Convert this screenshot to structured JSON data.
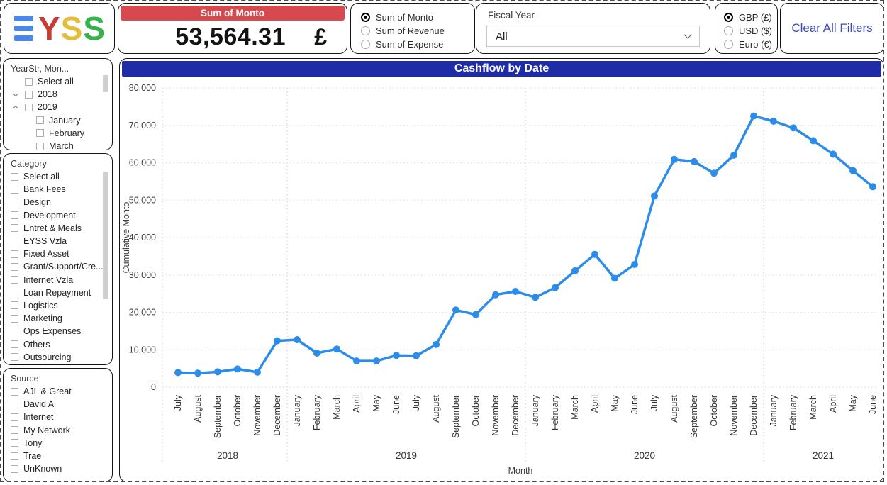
{
  "logo": {
    "text": "EYSS",
    "colors": {
      "e": "#4b87e8",
      "y": "#c93b33",
      "s1": "#e3be3a",
      "s2": "#35b34a"
    }
  },
  "kpi_card": {
    "header": "Sum of Monto",
    "value": "53,564.31",
    "currency": "£",
    "header_bg": "#d6494c",
    "header_color": "#ffffff"
  },
  "metric_selector": {
    "options": [
      {
        "label": "Sum of Monto",
        "selected": true
      },
      {
        "label": "Sum of Revenue",
        "selected": false
      },
      {
        "label": "Sum of Expense",
        "selected": false
      }
    ]
  },
  "fiscal_year": {
    "label": "Fiscal Year",
    "value": "All"
  },
  "currency_selector": {
    "options": [
      {
        "label": "GBP (£)",
        "selected": true
      },
      {
        "label": "USD ($)",
        "selected": false
      },
      {
        "label": "Euro (€)",
        "selected": false
      }
    ]
  },
  "clear_filters_button": {
    "label": "Clear All Filters",
    "color": "#3b4ab8"
  },
  "filters": {
    "year_month": {
      "title": "YearStr, Mon...",
      "items": [
        {
          "label": "Select all",
          "level": 0,
          "expander": null
        },
        {
          "label": "2018",
          "level": 0,
          "expander": "collapsed"
        },
        {
          "label": "2019",
          "level": 0,
          "expander": "expanded"
        },
        {
          "label": "January",
          "level": 1,
          "expander": null
        },
        {
          "label": "February",
          "level": 1,
          "expander": null
        },
        {
          "label": "March",
          "level": 1,
          "expander": null
        }
      ]
    },
    "category": {
      "title": "Category",
      "items": [
        "Select all",
        "Bank Fees",
        "Design",
        "Development",
        "Entret & Meals",
        "EYSS Vzla",
        "Fixed Asset",
        "Grant/Support/Cre...",
        "Internet Vzla",
        "Loan Repayment",
        "Logistics",
        "Marketing",
        "Ops Expenses",
        "Others",
        "Outsourcing"
      ]
    },
    "source": {
      "title": "Source",
      "items": [
        "AJL & Great",
        "David A",
        "Internet",
        "My Network",
        "Tony",
        "Trae",
        "UnKnown"
      ]
    }
  },
  "chart_data": {
    "type": "line",
    "title": "Cashflow by Date",
    "title_bg": "#1f2ca6",
    "title_color": "#ffffff",
    "xlabel": "Month",
    "ylabel": "Cumulative Monto",
    "ylim": [
      0,
      80000
    ],
    "y_ticks": [
      0,
      10000,
      20000,
      30000,
      40000,
      50000,
      60000,
      70000,
      80000
    ],
    "grid": "dotted",
    "legend": "none",
    "line_color": "#2b8cea",
    "x": [
      "July",
      "August",
      "September",
      "October",
      "November",
      "December",
      "January",
      "February",
      "March",
      "April",
      "May",
      "June",
      "July",
      "August",
      "September",
      "October",
      "November",
      "December",
      "January",
      "February",
      "March",
      "April",
      "May",
      "June",
      "July",
      "August",
      "September",
      "October",
      "November",
      "December",
      "January",
      "February",
      "March",
      "April",
      "May",
      "June"
    ],
    "year_groups": [
      {
        "label": "2018",
        "count": 6
      },
      {
        "label": "2019",
        "count": 12
      },
      {
        "label": "2020",
        "count": 12
      },
      {
        "label": "2021",
        "count": 6
      }
    ],
    "series": [
      {
        "name": "Cumulative Monto",
        "values": [
          3900,
          3750,
          4100,
          4850,
          4000,
          12400,
          12700,
          9100,
          10200,
          7000,
          7000,
          8500,
          8400,
          11400,
          20600,
          19400,
          24700,
          25600,
          24000,
          26600,
          31100,
          35500,
          29100,
          32800,
          51100,
          60900,
          60300,
          57200,
          62000,
          72500,
          71100,
          69300,
          65900,
          62300,
          57900,
          53564.31
        ]
      }
    ]
  }
}
